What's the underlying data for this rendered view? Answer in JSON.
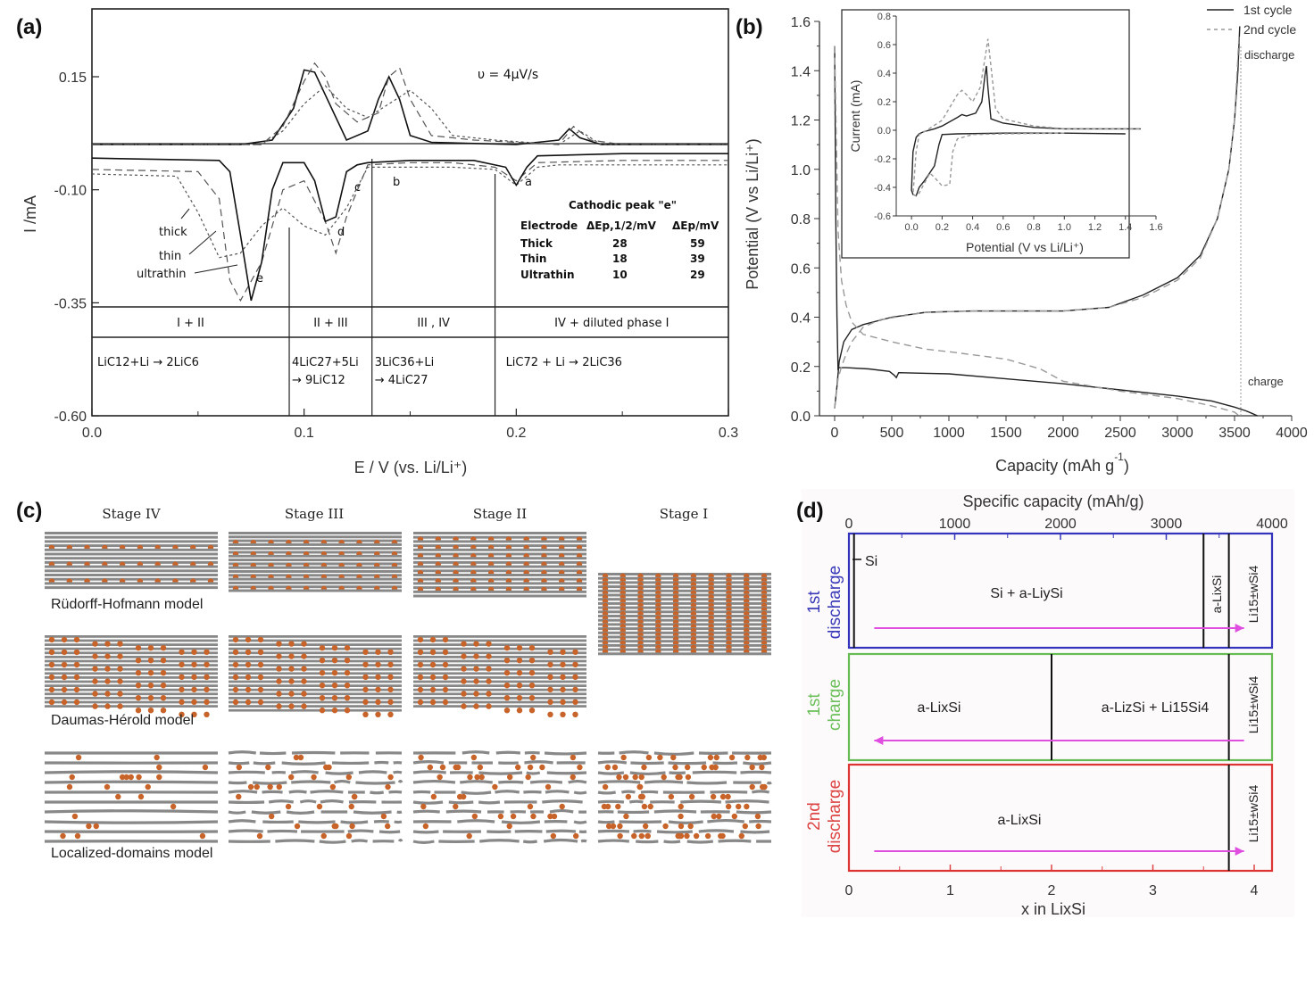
{
  "panels": {
    "a": {
      "label": "(a)"
    },
    "b": {
      "label": "(b)"
    },
    "c": {
      "label": "(c)"
    },
    "d": {
      "label": "(d)"
    }
  },
  "chart_data": [
    {
      "id": "a",
      "type": "line",
      "title": "",
      "annotation": "υ = 4μV/s",
      "xlabel": "E / V (vs. Li/Li⁺)",
      "ylabel": "I /mA",
      "xlim": [
        0.0,
        0.3
      ],
      "ylim": [
        -0.6,
        0.25
      ],
      "xticks": [
        "0.0",
        "0.1",
        "0.2",
        "0.3"
      ],
      "yticks": [
        "0.15",
        "-0.10",
        "-0.35",
        "-0.60"
      ],
      "series": [
        {
          "name": "thick",
          "style": "dotted",
          "x": [
            0.0,
            0.04,
            0.05,
            0.06,
            0.07,
            0.08,
            0.09,
            0.1,
            0.11,
            0.12,
            0.13,
            0.15,
            0.17,
            0.19,
            0.2,
            0.21,
            0.22,
            0.25,
            0.3
          ],
          "y": [
            -0.065,
            -0.07,
            -0.15,
            -0.25,
            -0.24,
            -0.18,
            -0.14,
            -0.18,
            -0.2,
            -0.14,
            -0.05,
            -0.05,
            -0.05,
            -0.055,
            -0.09,
            -0.05,
            -0.045,
            -0.045,
            -0.045
          ]
        },
        {
          "name": "thin",
          "style": "dashed",
          "x": [
            0.0,
            0.05,
            0.06,
            0.065,
            0.07,
            0.08,
            0.09,
            0.1,
            0.11,
            0.115,
            0.12,
            0.13,
            0.15,
            0.17,
            0.19,
            0.2,
            0.21,
            0.25,
            0.3
          ],
          "y": [
            -0.055,
            -0.06,
            -0.12,
            -0.3,
            -0.345,
            -0.26,
            -0.1,
            -0.08,
            -0.17,
            -0.24,
            -0.16,
            -0.045,
            -0.04,
            -0.04,
            -0.05,
            -0.08,
            -0.04,
            -0.035,
            -0.035
          ]
        },
        {
          "name": "ultrathin",
          "style": "solid",
          "x": [
            0.0,
            0.06,
            0.065,
            0.07,
            0.075,
            0.08,
            0.085,
            0.09,
            0.1,
            0.105,
            0.11,
            0.115,
            0.12,
            0.125,
            0.13,
            0.15,
            0.18,
            0.195,
            0.2,
            0.205,
            0.21,
            0.25,
            0.3
          ],
          "y": [
            -0.03,
            -0.035,
            -0.06,
            -0.2,
            -0.345,
            -0.26,
            -0.1,
            -0.04,
            -0.04,
            -0.08,
            -0.17,
            -0.16,
            -0.06,
            -0.045,
            -0.04,
            -0.035,
            -0.035,
            -0.05,
            -0.09,
            -0.05,
            -0.025,
            -0.02,
            -0.02
          ]
        },
        {
          "name": "anodic-ultrathin",
          "style": "solid",
          "x": [
            0.0,
            0.07,
            0.085,
            0.095,
            0.1,
            0.105,
            0.11,
            0.12,
            0.13,
            0.135,
            0.14,
            0.145,
            0.15,
            0.16,
            0.2,
            0.22,
            0.225,
            0.23,
            0.24,
            0.3
          ],
          "y": [
            0.0,
            0.0,
            0.01,
            0.08,
            0.165,
            0.16,
            0.11,
            0.01,
            0.03,
            0.1,
            0.15,
            0.1,
            0.02,
            0.005,
            0.0,
            0.01,
            0.035,
            0.015,
            0.0,
            0.0
          ]
        },
        {
          "name": "anodic-thin",
          "style": "dashed",
          "x": [
            0.0,
            0.08,
            0.09,
            0.1,
            0.105,
            0.11,
            0.115,
            0.125,
            0.135,
            0.14,
            0.145,
            0.15,
            0.16,
            0.18,
            0.22,
            0.227,
            0.235,
            0.25,
            0.3
          ],
          "y": [
            0.0,
            0.0,
            0.04,
            0.14,
            0.18,
            0.15,
            0.09,
            0.05,
            0.07,
            0.15,
            0.17,
            0.1,
            0.02,
            0.01,
            0.0,
            0.04,
            0.01,
            0.0,
            0.0
          ]
        },
        {
          "name": "anodic-thick",
          "style": "dotted",
          "x": [
            0.0,
            0.08,
            0.09,
            0.1,
            0.11,
            0.12,
            0.13,
            0.14,
            0.15,
            0.16,
            0.17,
            0.19,
            0.22,
            0.23,
            0.24,
            0.3
          ],
          "y": [
            0.0,
            0.0,
            0.03,
            0.09,
            0.13,
            0.08,
            0.06,
            0.09,
            0.12,
            0.08,
            0.02,
            0.01,
            0.0,
            0.03,
            0.0,
            0.0
          ]
        }
      ],
      "peak_labels": [
        "a",
        "b",
        "c",
        "d",
        "e"
      ],
      "curve_labels": [
        "thick",
        "thin",
        "ultrathin"
      ],
      "table": {
        "title": "Cathodic peak \"e\"",
        "headers": [
          "Electrode",
          "ΔEp,1/2/mV",
          "ΔEp/mV"
        ],
        "rows": [
          [
            "Thick",
            "28",
            "59"
          ],
          [
            "Thin",
            "18",
            "39"
          ],
          [
            "Ultrathin",
            "10",
            "29"
          ]
        ]
      },
      "phase_regions": [
        {
          "from": 0.0,
          "to": 0.093,
          "phase": "I + II",
          "reaction_line1": "LiC12+Li → 2LiC6",
          "reaction_line2": ""
        },
        {
          "from": 0.093,
          "to": 0.132,
          "phase": "II + III",
          "reaction_line1": "4LiC27+5Li",
          "reaction_line2": "→ 9LiC12"
        },
        {
          "from": 0.132,
          "to": 0.19,
          "phase": "III , IV",
          "reaction_line1": "3LiC36+Li",
          "reaction_line2": "→ 4LiC27"
        },
        {
          "from": 0.19,
          "to": 0.3,
          "phase": "IV + diluted phase I",
          "reaction_line1": "LiC72 + Li → 2LiC36",
          "reaction_line2": ""
        }
      ]
    },
    {
      "id": "b",
      "type": "line",
      "title": "",
      "xlabel": "Capacity (mAh g⁻¹)",
      "ylabel": "Potential (V vs Li/Li⁺)",
      "xlim": [
        -250,
        4000
      ],
      "ylim": [
        0.0,
        1.6
      ],
      "xticks": [
        "0",
        "500",
        "1000",
        "1500",
        "2000",
        "2500",
        "3000",
        "3500",
        "4000"
      ],
      "yticks": [
        "0.0",
        "0.2",
        "0.4",
        "0.6",
        "0.8",
        "1.0",
        "1.2",
        "1.4",
        "1.6"
      ],
      "legend": {
        "position": "top-right",
        "entries": [
          {
            "label": "1st cycle",
            "style": "solid"
          },
          {
            "label": "2nd cycle",
            "style": "dashed"
          }
        ]
      },
      "annotations": [
        "discharge",
        "charge"
      ],
      "series": [
        {
          "name": "1st cycle discharge",
          "style": "solid",
          "x": [
            0,
            5,
            10,
            20,
            30,
            40,
            100,
            300,
            480,
            520,
            540,
            560,
            1000,
            1500,
            2000,
            2500,
            3000,
            3300,
            3500,
            3600,
            3650,
            3700
          ],
          "y": [
            1.5,
            1.2,
            0.8,
            0.4,
            0.19,
            0.195,
            0.195,
            0.19,
            0.18,
            0.165,
            0.155,
            0.175,
            0.17,
            0.15,
            0.13,
            0.105,
            0.08,
            0.06,
            0.035,
            0.02,
            0.01,
            0.0
          ]
        },
        {
          "name": "1st cycle charge",
          "style": "solid",
          "x": [
            0,
            20,
            40,
            80,
            150,
            250,
            500,
            800,
            1200,
            2000,
            2400,
            2700,
            3000,
            3200,
            3350,
            3450,
            3500,
            3530,
            3545
          ],
          "y": [
            0.03,
            0.12,
            0.22,
            0.3,
            0.35,
            0.37,
            0.4,
            0.42,
            0.425,
            0.425,
            0.44,
            0.49,
            0.56,
            0.65,
            0.8,
            1.0,
            1.2,
            1.4,
            1.58
          ]
        },
        {
          "name": "2nd cycle discharge",
          "style": "dashed",
          "x": [
            0,
            30,
            60,
            100,
            150,
            250,
            500,
            800,
            1000,
            1500,
            1800,
            2000,
            2500,
            3000,
            3300,
            3500,
            3540
          ],
          "y": [
            1.5,
            0.75,
            0.55,
            0.45,
            0.38,
            0.33,
            0.3,
            0.27,
            0.26,
            0.23,
            0.19,
            0.14,
            0.1,
            0.07,
            0.04,
            0.015,
            0.0
          ]
        },
        {
          "name": "2nd cycle charge",
          "style": "dashed",
          "x": [
            0,
            30,
            60,
            100,
            150,
            250,
            400,
            800,
            1200,
            2000,
            2400,
            2700,
            3000,
            3200,
            3350,
            3450,
            3500,
            3540
          ],
          "y": [
            0.03,
            0.15,
            0.2,
            0.25,
            0.3,
            0.36,
            0.39,
            0.42,
            0.425,
            0.425,
            0.44,
            0.48,
            0.55,
            0.64,
            0.8,
            1.0,
            1.2,
            1.55
          ]
        }
      ],
      "inset": {
        "type": "line",
        "xlabel": "Potential (V vs Li/Li⁺)",
        "ylabel": "Current (mA)",
        "xlim": [
          -0.1,
          1.6
        ],
        "ylim": [
          -0.6,
          0.8
        ],
        "xticks": [
          "0.0",
          "0.2",
          "0.4",
          "0.6",
          "0.8",
          "1.0",
          "1.2",
          "1.4",
          "1.6"
        ],
        "yticks": [
          "-0.6",
          "-0.4",
          "-0.2",
          "0.0",
          "0.2",
          "0.4",
          "0.6",
          "0.8"
        ],
        "series": [
          {
            "name": "1st cycle",
            "style": "solid",
            "x": [
              1.4,
              1.0,
              0.6,
              0.3,
              0.2,
              0.18,
              0.15,
              0.1,
              0.08,
              0.05,
              0.03,
              0.01,
              0.0,
              0.01,
              0.03,
              0.05,
              0.08,
              0.15,
              0.2,
              0.3,
              0.33,
              0.36,
              0.42,
              0.46,
              0.48,
              0.49,
              0.5,
              0.52,
              0.6,
              0.8,
              1.0,
              1.5
            ],
            "y": [
              -0.025,
              -0.02,
              -0.02,
              -0.025,
              -0.03,
              -0.1,
              -0.25,
              -0.33,
              -0.36,
              -0.4,
              -0.46,
              -0.45,
              -0.42,
              -0.15,
              -0.05,
              -0.025,
              -0.01,
              0.01,
              0.03,
              0.09,
              0.11,
              0.1,
              0.12,
              0.2,
              0.38,
              0.45,
              0.3,
              0.08,
              0.05,
              0.02,
              0.01,
              0.01
            ]
          },
          {
            "name": "2nd cycle",
            "style": "dashed",
            "x": [
              1.0,
              0.6,
              0.4,
              0.3,
              0.27,
              0.25,
              0.2,
              0.15,
              0.12,
              0.08,
              0.05,
              0.03,
              0.01,
              0.03,
              0.05,
              0.1,
              0.2,
              0.3,
              0.33,
              0.36,
              0.4,
              0.45,
              0.48,
              0.5,
              0.52,
              0.55,
              0.6,
              0.8,
              1.0,
              1.5
            ],
            "y": [
              -0.02,
              -0.025,
              -0.03,
              -0.06,
              -0.15,
              -0.38,
              -0.39,
              -0.33,
              -0.3,
              -0.38,
              -0.44,
              -0.46,
              -0.45,
              -0.15,
              -0.03,
              0.0,
              0.07,
              0.25,
              0.28,
              0.25,
              0.2,
              0.3,
              0.5,
              0.64,
              0.45,
              0.15,
              0.08,
              0.03,
              0.01,
              0.01
            ]
          }
        ]
      }
    },
    {
      "id": "d",
      "type": "table",
      "title": "Specific capacity (mAh/g)",
      "top_axis": {
        "label": "Specific capacity (mAh/g)",
        "lim": [
          0,
          4000
        ],
        "ticks": [
          "0",
          "1000",
          "2000",
          "3000",
          "4000"
        ]
      },
      "bottom_axis": {
        "label": "x in LixSi",
        "lim": [
          0,
          4.2
        ],
        "ticks": [
          "0",
          "1",
          "2",
          "3",
          "4"
        ]
      },
      "rows": [
        {
          "name": "1st discharge",
          "color": "#3333bb",
          "boundaries_x": [
            0.05,
            3.5,
            3.75
          ],
          "regions": [
            "Si + a-LiySi",
            "a-LixSi",
            "Li15±wSi4"
          ],
          "marker": "Si",
          "arrow": {
            "from": 0.25,
            "to": 3.9,
            "direction": "right"
          }
        },
        {
          "name": "1st charge",
          "color": "#66bb55",
          "boundaries_x": [
            2.0,
            3.75
          ],
          "regions": [
            "a-LixSi",
            "a-LizSi + Li15Si4",
            "Li15±wSi4"
          ],
          "arrow": {
            "from": 3.9,
            "to": 0.25,
            "direction": "left"
          }
        },
        {
          "name": "2nd discharge",
          "color": "#dd3333",
          "boundaries_x": [
            3.75
          ],
          "regions": [
            "a-LixSi",
            "Li15±wSi4"
          ],
          "arrow": {
            "from": 0.25,
            "to": 3.9,
            "direction": "right"
          }
        }
      ]
    }
  ],
  "panel_c": {
    "stage_titles": [
      "Stage IV",
      "Stage III",
      "Stage II",
      "Stage I"
    ],
    "models": [
      "Rüdorff-Hofmann model",
      "Daumas-Hérold model",
      "Localized-domains model"
    ],
    "layer_color": "#888888",
    "ion_color": "#c8642a"
  },
  "labels_a": {
    "annotation": "υ = 4μV/s",
    "xlabel": "E / V (vs. Li/Li⁺)",
    "ylabel": "I /mA",
    "thick": "thick",
    "thin": "thin",
    "ultrathin": "ultrathin",
    "pa": "a",
    "pb": "b",
    "pc": "c",
    "pd": "d",
    "pe": "e",
    "table_title": "Cathodic peak \"e\"",
    "h1": "Electrode",
    "h2": "ΔEp,1/2/mV",
    "h3": "ΔEp/mV",
    "r1c1": "Thick",
    "r1c2": "28",
    "r1c3": "59",
    "r2c1": "Thin",
    "r2c2": "18",
    "r2c3": "39",
    "r3c1": "Ultrathin",
    "r3c2": "10",
    "r3c3": "29"
  },
  "labels_b": {
    "xlabel": "Capacity (mAh g",
    "xsup": "-1",
    "xclose": ")",
    "ylabel": "Potential (V vs Li/Li⁺)",
    "legend1": "1st cycle",
    "legend2": "2nd cycle",
    "discharge": "discharge",
    "charge": "charge",
    "inset_xlabel": "Potential (V vs Li/Li⁺)",
    "inset_ylabel": "Current (mA)"
  },
  "labels_d": {
    "top": "Specific capacity (mAh/g)",
    "bottom": "x in LixSi",
    "row1a": "1st",
    "row1b": "discharge",
    "row2a": "1st",
    "row2b": "charge",
    "row3a": "2nd",
    "row3b": "discharge",
    "si": "Si",
    "r1_main": "Si + a-LiySi",
    "r1_alixsi": "a-LixSi",
    "li15": "Li15±wSi4",
    "r2_left": "a-LixSi",
    "r2_right": "a-LizSi + Li15Si4",
    "r3_main": "a-LixSi"
  }
}
